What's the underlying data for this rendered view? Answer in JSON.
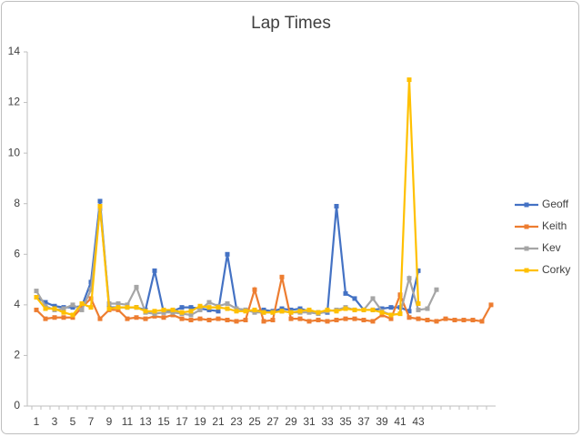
{
  "chart_data": {
    "type": "line",
    "title": "Lap Times",
    "categories": [
      1,
      null,
      3,
      null,
      5,
      null,
      7,
      null,
      9,
      null,
      11,
      null,
      13,
      null,
      15,
      null,
      17,
      null,
      19,
      null,
      21,
      null,
      23,
      null,
      25,
      null,
      27,
      null,
      29,
      null,
      31,
      null,
      33,
      null,
      35,
      null,
      37,
      null,
      39,
      null,
      41,
      null,
      43,
      null,
      null,
      null,
      null,
      null,
      null,
      null,
      null
    ],
    "series": [
      {
        "name": "Geoff",
        "color": "#4472c4",
        "values": [
          4.3,
          4.1,
          3.95,
          3.9,
          3.9,
          3.95,
          4.9,
          8.1,
          3.9,
          3.9,
          3.9,
          3.9,
          3.8,
          5.35,
          3.7,
          3.75,
          3.9,
          3.9,
          3.85,
          3.8,
          3.75,
          6.0,
          3.85,
          3.8,
          3.75,
          3.8,
          3.75,
          3.85,
          3.8,
          3.85,
          3.75,
          3.7,
          3.7,
          7.9,
          4.45,
          4.25,
          3.8,
          3.8,
          3.85,
          3.9,
          3.9,
          3.75,
          5.35,
          null,
          null,
          null,
          null,
          null,
          null,
          null,
          null
        ]
      },
      {
        "name": "Keith",
        "color": "#ed7d31",
        "values": [
          3.8,
          3.45,
          3.5,
          3.5,
          3.5,
          3.9,
          4.25,
          3.45,
          3.8,
          3.8,
          3.45,
          3.5,
          3.45,
          3.55,
          3.5,
          3.6,
          3.45,
          3.4,
          3.45,
          3.4,
          3.45,
          3.4,
          3.35,
          3.4,
          4.6,
          3.35,
          3.4,
          5.1,
          3.45,
          3.45,
          3.35,
          3.4,
          3.35,
          3.4,
          3.45,
          3.45,
          3.4,
          3.35,
          3.6,
          3.45,
          4.4,
          3.5,
          3.45,
          3.4,
          3.35,
          3.45,
          3.4,
          3.4,
          3.4,
          3.35,
          4.0
        ]
      },
      {
        "name": "Kev",
        "color": "#a5a5a5",
        "values": [
          4.55,
          3.95,
          3.8,
          3.85,
          4.0,
          3.8,
          4.6,
          7.8,
          4.05,
          4.05,
          4.0,
          4.7,
          3.7,
          3.65,
          3.7,
          3.7,
          3.65,
          3.6,
          3.8,
          4.1,
          3.95,
          4.05,
          3.85,
          3.8,
          3.7,
          3.7,
          3.7,
          3.75,
          3.7,
          3.7,
          3.7,
          3.65,
          3.75,
          3.8,
          3.9,
          3.8,
          3.8,
          4.25,
          3.75,
          3.6,
          3.65,
          5.05,
          3.8,
          3.85,
          4.6,
          null,
          null,
          null,
          null,
          null,
          null
        ]
      },
      {
        "name": "Corky",
        "color": "#ffc000",
        "values": [
          4.3,
          3.85,
          3.85,
          3.7,
          3.6,
          4.05,
          3.9,
          7.9,
          3.85,
          3.9,
          3.9,
          3.9,
          3.75,
          3.75,
          3.8,
          3.8,
          3.7,
          3.75,
          3.95,
          3.9,
          3.9,
          3.85,
          3.75,
          3.75,
          3.8,
          3.7,
          3.7,
          3.75,
          3.7,
          3.75,
          3.8,
          3.7,
          3.8,
          3.75,
          3.85,
          3.8,
          3.8,
          3.8,
          3.7,
          3.6,
          3.65,
          12.9,
          4.05,
          null,
          null,
          null,
          null,
          null,
          null,
          null,
          null
        ]
      }
    ],
    "ylim": [
      0,
      14
    ],
    "yticks": [
      0,
      2,
      4,
      6,
      8,
      10,
      12,
      14
    ],
    "legend": "right"
  }
}
